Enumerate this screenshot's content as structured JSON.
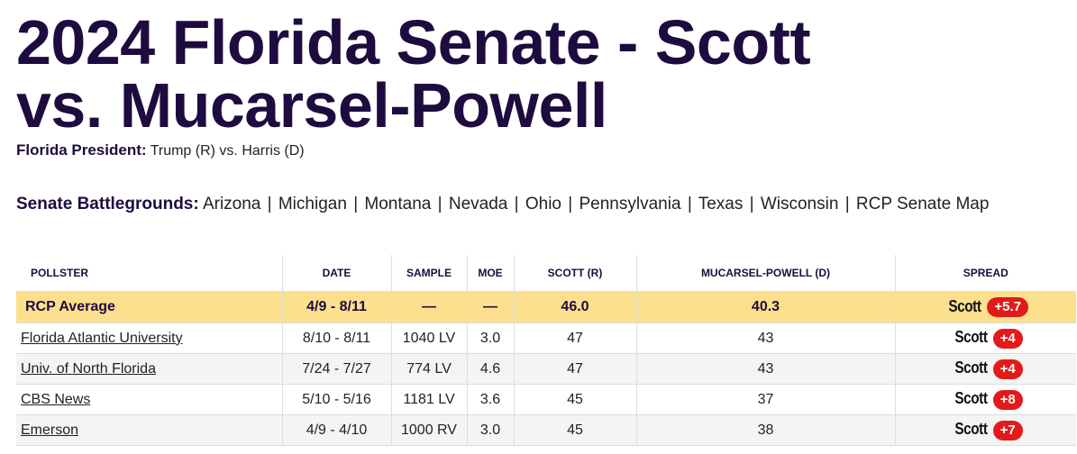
{
  "page": {
    "title_line1": "2024 Florida Senate - Scott",
    "title_line2": "vs. Mucarsel-Powell"
  },
  "president_line": {
    "label": "Florida President:",
    "link": "Trump (R) vs. Harris (D)"
  },
  "battlegrounds": {
    "label": "Senate Battlegrounds:",
    "links": [
      "Arizona",
      "Michigan",
      "Montana",
      "Nevada",
      "Ohio",
      "Pennsylvania",
      "Texas",
      "Wisconsin",
      "RCP Senate Map"
    ],
    "separator": "|"
  },
  "table": {
    "headers": [
      "Pollster",
      "Date",
      "Sample",
      "MoE",
      "Scott (R)",
      "Mucarsel-Powell (D)",
      "Spread"
    ],
    "average": {
      "pollster": "RCP Average",
      "date": "4/9 - 8/11",
      "sample": "—",
      "moe": "—",
      "scott": "46.0",
      "mucarsel": "40.3",
      "spread_name": "Scott",
      "spread_value": "+5.7"
    },
    "rows": [
      {
        "pollster": "Florida Atlantic University",
        "date": "8/10 - 8/11",
        "sample": "1040 LV",
        "moe": "3.0",
        "scott": "47",
        "mucarsel": "43",
        "spread_name": "Scott",
        "spread_value": "+4"
      },
      {
        "pollster": "Univ. of North Florida",
        "date": "7/24 - 7/27",
        "sample": "774 LV",
        "moe": "4.6",
        "scott": "47",
        "mucarsel": "43",
        "spread_name": "Scott",
        "spread_value": "+4"
      },
      {
        "pollster": "CBS News",
        "date": "5/10 - 5/16",
        "sample": "1181 LV",
        "moe": "3.6",
        "scott": "45",
        "mucarsel": "37",
        "spread_name": "Scott",
        "spread_value": "+8"
      },
      {
        "pollster": "Emerson",
        "date": "4/9 - 4/10",
        "sample": "1000 RV",
        "moe": "3.0",
        "scott": "45",
        "mucarsel": "38",
        "spread_name": "Scott",
        "spread_value": "+7"
      }
    ]
  },
  "colors": {
    "title": "#1e0b3f",
    "average_row": "#fde08e",
    "badge": "#e31a1a",
    "zebra": "#f4f4f4"
  }
}
